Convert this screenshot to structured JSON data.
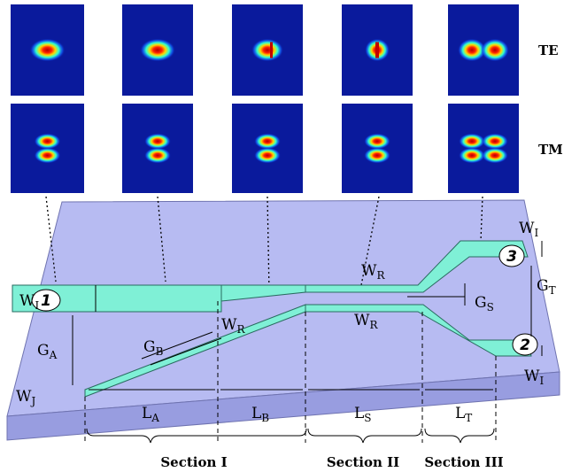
{
  "row_labels": [
    "TE",
    "TM"
  ],
  "ports": [
    "1",
    "2",
    "3"
  ],
  "dimensions": [
    {
      "symbol": "W",
      "sub": "I"
    },
    {
      "symbol": "W",
      "sub": "I"
    },
    {
      "symbol": "W",
      "sub": "I"
    },
    {
      "symbol": "W",
      "sub": "R"
    },
    {
      "symbol": "W",
      "sub": "R"
    },
    {
      "symbol": "W",
      "sub": "R"
    },
    {
      "symbol": "W",
      "sub": "J"
    },
    {
      "symbol": "G",
      "sub": "A"
    },
    {
      "symbol": "G",
      "sub": "B"
    },
    {
      "symbol": "G",
      "sub": "S"
    },
    {
      "symbol": "G",
      "sub": "T"
    },
    {
      "symbol": "L",
      "sub": "A"
    },
    {
      "symbol": "L",
      "sub": "B"
    },
    {
      "symbol": "L",
      "sub": "S"
    },
    {
      "symbol": "L",
      "sub": "T"
    }
  ],
  "sections": [
    "Section I",
    "Section II",
    "Section III"
  ]
}
